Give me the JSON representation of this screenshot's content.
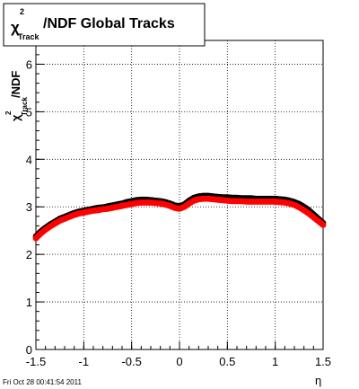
{
  "chart_data": {
    "type": "scatter",
    "title": "/NDF  Global Tracks",
    "title_symbol": "χ",
    "title_sup": "2",
    "title_sub": "Track",
    "xlabel": "η",
    "ylabel": "/NDF",
    "ylabel_symbol": "χ",
    "ylabel_sup": "2",
    "ylabel_sub": "Track",
    "xlim": [
      -1.5,
      1.5
    ],
    "ylim": [
      0,
      6.5
    ],
    "grid": true,
    "x_ticks": [
      -1.5,
      -1,
      -0.5,
      0,
      0.5,
      1,
      1.5
    ],
    "x_tick_labels": [
      "-1.5",
      "-1",
      "-0.5",
      "0",
      "0.5",
      "1",
      "1.5"
    ],
    "y_ticks": [
      0,
      1,
      2,
      3,
      4,
      5,
      6
    ],
    "y_tick_labels": [
      "0",
      "1",
      "2",
      "3",
      "4",
      "5",
      "6"
    ],
    "series": [
      {
        "color": "#000000",
        "x": [
          -1.5,
          -1.45,
          -1.4,
          -1.35,
          -1.3,
          -1.25,
          -1.2,
          -1.15,
          -1.1,
          -1.05,
          -1.0,
          -0.95,
          -0.9,
          -0.85,
          -0.8,
          -0.75,
          -0.7,
          -0.65,
          -0.6,
          -0.55,
          -0.5,
          -0.45,
          -0.4,
          -0.35,
          -0.3,
          -0.25,
          -0.2,
          -0.15,
          -0.1,
          -0.05,
          0.0,
          0.05,
          0.1,
          0.15,
          0.2,
          0.25,
          0.3,
          0.35,
          0.4,
          0.45,
          0.5,
          0.55,
          0.6,
          0.65,
          0.7,
          0.75,
          0.8,
          0.85,
          0.9,
          0.95,
          1.0,
          1.05,
          1.1,
          1.15,
          1.2,
          1.25,
          1.3,
          1.35,
          1.4,
          1.45,
          1.5
        ],
        "y": [
          2.38,
          2.48,
          2.56,
          2.63,
          2.69,
          2.75,
          2.79,
          2.83,
          2.87,
          2.9,
          2.92,
          2.94,
          2.96,
          2.98,
          2.99,
          3.01,
          3.03,
          3.05,
          3.07,
          3.1,
          3.12,
          3.14,
          3.15,
          3.15,
          3.14,
          3.13,
          3.12,
          3.1,
          3.07,
          3.03,
          3.01,
          3.05,
          3.13,
          3.19,
          3.22,
          3.23,
          3.23,
          3.22,
          3.21,
          3.2,
          3.2,
          3.19,
          3.19,
          3.18,
          3.18,
          3.18,
          3.17,
          3.17,
          3.17,
          3.17,
          3.17,
          3.16,
          3.15,
          3.13,
          3.1,
          3.06,
          3.0,
          2.93,
          2.84,
          2.75,
          2.66
        ]
      },
      {
        "color": "#ff0000",
        "x": [
          -1.5,
          -1.45,
          -1.4,
          -1.35,
          -1.3,
          -1.25,
          -1.2,
          -1.15,
          -1.1,
          -1.05,
          -1.0,
          -0.95,
          -0.9,
          -0.85,
          -0.8,
          -0.75,
          -0.7,
          -0.65,
          -0.6,
          -0.55,
          -0.5,
          -0.45,
          -0.4,
          -0.35,
          -0.3,
          -0.25,
          -0.2,
          -0.15,
          -0.1,
          -0.05,
          0.0,
          0.05,
          0.1,
          0.15,
          0.2,
          0.25,
          0.3,
          0.35,
          0.4,
          0.45,
          0.5,
          0.55,
          0.6,
          0.65,
          0.7,
          0.75,
          0.8,
          0.85,
          0.9,
          0.95,
          1.0,
          1.05,
          1.1,
          1.15,
          1.2,
          1.25,
          1.3,
          1.35,
          1.4,
          1.45,
          1.5
        ],
        "y": [
          2.34,
          2.44,
          2.52,
          2.59,
          2.65,
          2.71,
          2.75,
          2.79,
          2.83,
          2.86,
          2.88,
          2.9,
          2.92,
          2.93,
          2.95,
          2.96,
          2.98,
          3.0,
          3.02,
          3.04,
          3.06,
          3.08,
          3.09,
          3.09,
          3.09,
          3.08,
          3.07,
          3.05,
          3.02,
          2.98,
          2.96,
          3.0,
          3.07,
          3.13,
          3.16,
          3.17,
          3.17,
          3.16,
          3.15,
          3.14,
          3.13,
          3.12,
          3.12,
          3.12,
          3.11,
          3.11,
          3.11,
          3.11,
          3.11,
          3.11,
          3.11,
          3.1,
          3.09,
          3.07,
          3.04,
          2.99,
          2.93,
          2.86,
          2.78,
          2.7,
          2.62
        ]
      }
    ]
  },
  "footer": {
    "timestamp": "Fri Oct 28 00:41:54 2011"
  }
}
